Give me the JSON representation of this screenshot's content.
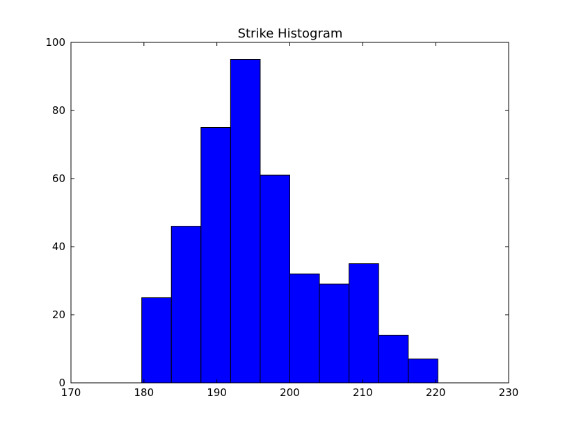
{
  "chart_data": {
    "type": "bar",
    "title": "Strike Histogram",
    "xlabel": "",
    "ylabel": "",
    "xlim": [
      170,
      230
    ],
    "ylim": [
      0,
      100
    ],
    "x_ticks": [
      170,
      180,
      190,
      200,
      210,
      220,
      230
    ],
    "y_ticks": [
      0,
      20,
      40,
      60,
      80,
      100
    ],
    "x_tick_labels": [
      "170",
      "180",
      "190",
      "200",
      "210",
      "220",
      "230"
    ],
    "y_tick_labels": [
      "0",
      "20",
      "40",
      "60",
      "80",
      "100"
    ],
    "grid": false,
    "legend": "none",
    "bin_edges": [
      179.7,
      183.76,
      187.82,
      191.88,
      195.94,
      200.0,
      204.06,
      208.12,
      212.18,
      216.24,
      220.3
    ],
    "values": [
      25,
      46,
      75,
      95,
      61,
      32,
      29,
      35,
      14,
      7
    ],
    "colors": {
      "bar_fill": "#0000ff",
      "bar_edge": "#000000",
      "axes": "#000000",
      "background": "#ffffff"
    }
  }
}
